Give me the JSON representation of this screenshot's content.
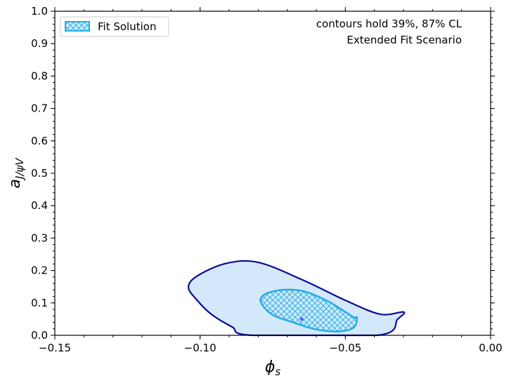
{
  "chart_data": {
    "type": "contour",
    "xlabel": "ϕ",
    "xlabel_sub": "s",
    "ylabel": "a",
    "ylabel_sub": "J/ψV",
    "xlim": [
      -0.15,
      0.0
    ],
    "ylim": [
      0.0,
      1.0
    ],
    "x_ticks": [
      -0.15,
      -0.1,
      -0.05,
      0.0
    ],
    "x_tick_labels": [
      "−0.15",
      "−0.10",
      "−0.05",
      "0.00"
    ],
    "y_ticks": [
      0.0,
      0.1,
      0.2,
      0.3,
      0.4,
      0.5,
      0.6,
      0.7,
      0.8,
      0.9,
      1.0
    ],
    "y_tick_labels": [
      "0.0",
      "0.1",
      "0.2",
      "0.3",
      "0.4",
      "0.5",
      "0.6",
      "0.7",
      "0.8",
      "0.9",
      "1.0"
    ],
    "legend": {
      "placement": "top-left",
      "entries": [
        {
          "label": "Fit Solution",
          "style": "hatched"
        }
      ]
    },
    "annotations": [
      "contours hold 39%, 87% CL",
      "Extended Fit Scenario"
    ],
    "contours": [
      {
        "level": "87% CL",
        "fill": "#d4e8fc",
        "stroke": "#0a0a96",
        "points": [
          [
            -0.082,
            0.0
          ],
          [
            -0.039,
            0.0
          ],
          [
            -0.032,
            0.05
          ],
          [
            -0.03,
            0.072
          ],
          [
            -0.038,
            0.065
          ],
          [
            -0.05,
            0.108
          ],
          [
            -0.065,
            0.172
          ],
          [
            -0.08,
            0.225
          ],
          [
            -0.091,
            0.222
          ],
          [
            -0.101,
            0.183
          ],
          [
            -0.104,
            0.148
          ],
          [
            -0.101,
            0.108
          ],
          [
            -0.096,
            0.064
          ],
          [
            -0.089,
            0.026
          ]
        ]
      },
      {
        "level": "39% CL",
        "fill": "#d4e8fc",
        "hatch": "#2cb4e6",
        "stroke": "#22aee2",
        "points": [
          [
            -0.079,
            0.1
          ],
          [
            -0.078,
            0.125
          ],
          [
            -0.072,
            0.14
          ],
          [
            -0.064,
            0.135
          ],
          [
            -0.056,
            0.105
          ],
          [
            -0.05,
            0.072
          ],
          [
            -0.047,
            0.055
          ],
          [
            -0.046,
            0.055
          ],
          [
            -0.047,
            0.025
          ],
          [
            -0.052,
            0.012
          ],
          [
            -0.06,
            0.018
          ],
          [
            -0.068,
            0.04
          ],
          [
            -0.075,
            0.063
          ]
        ]
      }
    ],
    "best_fit": {
      "x": -0.065,
      "y": 0.05,
      "color": "#5a5aff"
    }
  }
}
